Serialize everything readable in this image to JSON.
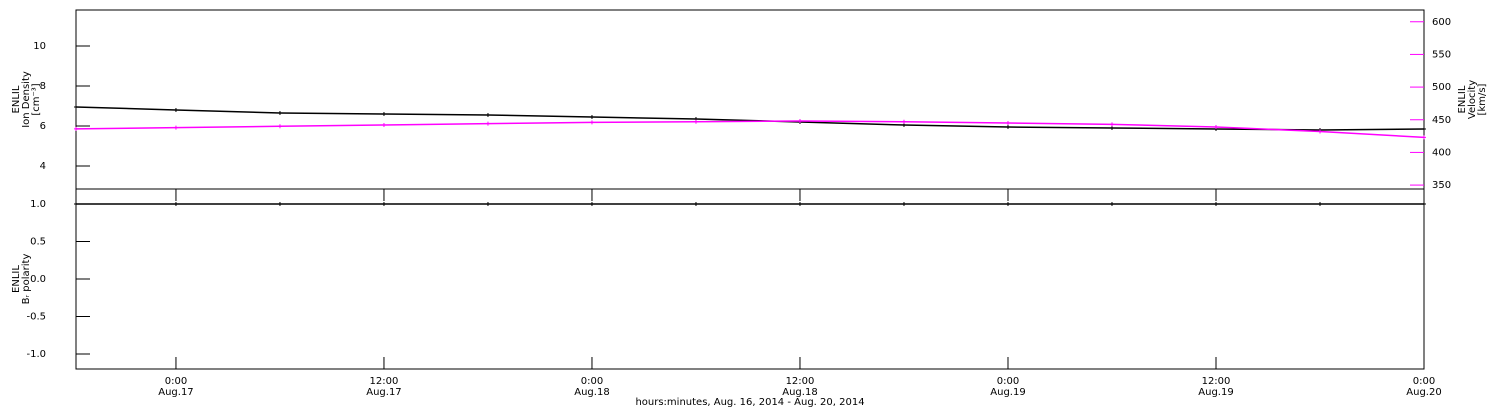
{
  "chart_data": [
    {
      "type": "line",
      "y_label": [
        "ENLIL",
        "Ion Density",
        "[cm⁻³]"
      ],
      "y2_label": [
        "ENLIL",
        "Velocity",
        "[km/s]"
      ],
      "xlim": [
        "2014-08-16T18:14",
        "2014-08-20T00:00"
      ],
      "ylim": [
        2.85,
        11.8
      ],
      "yticks": [
        4,
        6,
        8,
        10
      ],
      "y2lim": [
        344,
        618
      ],
      "y2ticks": [
        350,
        400,
        450,
        500,
        550,
        600
      ],
      "y2color": "#ff00ff",
      "x": [
        "2014-08-16T18:14",
        "2014-08-17T00:00",
        "2014-08-17T06:00",
        "2014-08-17T12:00",
        "2014-08-17T18:00",
        "2014-08-18T00:00",
        "2014-08-18T06:00",
        "2014-08-18T12:00",
        "2014-08-18T18:00",
        "2014-08-19T00:00",
        "2014-08-19T06:00",
        "2014-08-19T12:00",
        "2014-08-19T18:00",
        "2014-08-20T00:00"
      ],
      "series": [
        {
          "name": "Ion Density",
          "color": "#000000",
          "values": [
            6.95,
            6.8,
            6.65,
            6.6,
            6.55,
            6.45,
            6.35,
            6.2,
            6.05,
            5.95,
            5.9,
            5.85,
            5.8,
            5.85
          ]
        },
        {
          "name": "Velocity",
          "color": "#ff00ff",
          "axis": "y2",
          "values": [
            436,
            438,
            440,
            442,
            444,
            446,
            447,
            448,
            447,
            445,
            443,
            439,
            432,
            423
          ]
        }
      ]
    },
    {
      "type": "line",
      "y_label": [
        "ENLIL",
        "Bᵣ polarity"
      ],
      "xlim": [
        "2014-08-16T18:14",
        "2014-08-20T00:00"
      ],
      "ylim": [
        -1.2,
        1.2
      ],
      "yticks": [
        {
          "value": 1,
          "label": "1.0"
        },
        0.5,
        {
          "value": 0,
          "label": "0.0"
        },
        -0.5,
        {
          "value": -1,
          "label": "-1.0"
        }
      ],
      "xticks": [
        {
          "value": "2014-08-17T00:00",
          "label": "0:00",
          "date_label": "Aug.17"
        },
        {
          "value": "2014-08-17T12:00",
          "label": "12:00",
          "date_label": "Aug.17"
        },
        {
          "value": "2014-08-18T00:00",
          "label": "0:00",
          "date_label": "Aug.18"
        },
        {
          "value": "2014-08-18T12:00",
          "label": "12:00",
          "date_label": "Aug.18"
        },
        {
          "value": "2014-08-19T00:00",
          "label": "0:00",
          "date_label": "Aug.19"
        },
        {
          "value": "2014-08-19T12:00",
          "label": "12:00",
          "date_label": "Aug.19"
        },
        {
          "value": "2014-08-20T00:00",
          "label": "0:00",
          "date_label": "Aug.20"
        }
      ],
      "x_label": "hours:minutes, Aug. 16, 2014 - Aug. 20, 2014",
      "x": [
        "2014-08-16T18:14",
        "2014-08-17T00:00",
        "2014-08-17T06:00",
        "2014-08-17T12:00",
        "2014-08-17T18:00",
        "2014-08-18T00:00",
        "2014-08-18T06:00",
        "2014-08-18T12:00",
        "2014-08-18T18:00",
        "2014-08-19T00:00",
        "2014-08-19T06:00",
        "2014-08-19T12:00",
        "2014-08-19T18:00",
        "2014-08-20T00:00"
      ],
      "series": [
        {
          "name": "Br polarity",
          "color": "#000000",
          "values": [
            1,
            1,
            1,
            1,
            1,
            1,
            1,
            1,
            1,
            1,
            1,
            1,
            1,
            1
          ]
        }
      ]
    }
  ]
}
